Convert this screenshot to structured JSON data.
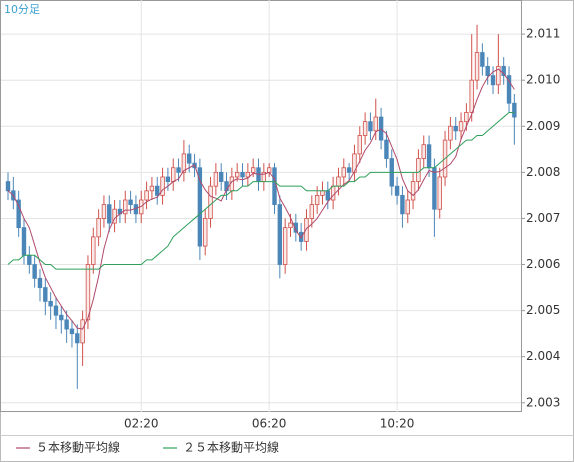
{
  "chart_data": {
    "type": "candlestick",
    "title": "10分足",
    "categories": [
      null,
      null,
      null,
      null,
      null,
      null,
      null,
      null,
      null,
      null,
      null,
      null,
      null,
      null,
      null,
      null,
      null,
      null,
      null,
      null,
      null,
      null,
      null,
      null,
      null,
      "02:20",
      null,
      null,
      null,
      null,
      null,
      null,
      null,
      null,
      null,
      null,
      null,
      null,
      null,
      null,
      null,
      null,
      null,
      null,
      null,
      null,
      null,
      null,
      null,
      "06:20",
      null,
      null,
      null,
      null,
      null,
      null,
      null,
      null,
      null,
      null,
      null,
      null,
      null,
      null,
      null,
      null,
      null,
      null,
      null,
      null,
      null,
      null,
      null,
      "10:20",
      null,
      null,
      null,
      null,
      null,
      null,
      null,
      null,
      null,
      null,
      null,
      null,
      null,
      null,
      null,
      null,
      null,
      null,
      null,
      null,
      null,
      null
    ],
    "candles": [
      [
        2.0078,
        2.008,
        2.0074,
        2.0076
      ],
      [
        2.0076,
        2.0079,
        2.0072,
        2.0074
      ],
      [
        2.0074,
        2.0076,
        2.0066,
        2.0068
      ],
      [
        2.0068,
        2.007,
        2.006,
        2.0062
      ],
      [
        2.0062,
        2.0064,
        2.0058,
        2.006
      ],
      [
        2.006,
        2.0062,
        2.0055,
        2.0057
      ],
      [
        2.0057,
        2.0059,
        2.0052,
        2.0055
      ],
      [
        2.0055,
        2.0057,
        2.0049,
        2.0052
      ],
      [
        2.0052,
        2.0054,
        2.0048,
        2.0051
      ],
      [
        2.0051,
        2.0053,
        2.0046,
        2.0049
      ],
      [
        2.0049,
        2.0051,
        2.0045,
        2.0048
      ],
      [
        2.0048,
        2.005,
        2.0043,
        2.0046
      ],
      [
        2.0046,
        2.0048,
        2.0042,
        2.0045
      ],
      [
        2.0045,
        2.0047,
        2.0033,
        2.0043
      ],
      [
        2.0043,
        2.005,
        2.0038,
        2.0048
      ],
      [
        2.0048,
        2.0062,
        2.0046,
        2.006
      ],
      [
        2.006,
        2.0068,
        2.0058,
        2.0066
      ],
      [
        2.0066,
        2.0072,
        2.0064,
        2.007
      ],
      [
        2.007,
        2.0075,
        2.0068,
        2.0073
      ],
      [
        2.0073,
        2.0075,
        2.0067,
        2.0069
      ],
      [
        2.0069,
        2.0074,
        2.0067,
        2.0072
      ],
      [
        2.0072,
        2.0074,
        2.0069,
        2.0071
      ],
      [
        2.0071,
        2.0076,
        2.0069,
        2.0074
      ],
      [
        2.0074,
        2.0076,
        2.0071,
        2.0073
      ],
      [
        2.0073,
        2.0075,
        2.0069,
        2.0071
      ],
      [
        2.0071,
        2.0076,
        2.0069,
        2.0074
      ],
      [
        2.0074,
        2.0078,
        2.0072,
        2.0076
      ],
      [
        2.0076,
        2.0079,
        2.0074,
        2.0077
      ],
      [
        2.0077,
        2.0079,
        2.0073,
        2.0075
      ],
      [
        2.0075,
        2.0081,
        2.0073,
        2.0079
      ],
      [
        2.0079,
        2.0081,
        2.0076,
        2.0078
      ],
      [
        2.0078,
        2.0083,
        2.0076,
        2.0081
      ],
      [
        2.0081,
        2.0083,
        2.0078,
        2.008
      ],
      [
        2.008,
        2.0087,
        2.0078,
        2.0084
      ],
      [
        2.0084,
        2.0086,
        2.008,
        2.0082
      ],
      [
        2.0082,
        2.0084,
        2.0079,
        2.0081
      ],
      [
        2.0081,
        2.0083,
        2.0061,
        2.0064
      ],
      [
        2.0064,
        2.0072,
        2.0062,
        2.007
      ],
      [
        2.007,
        2.0079,
        2.0068,
        2.0077
      ],
      [
        2.0077,
        2.0082,
        2.0075,
        2.008
      ],
      [
        2.008,
        2.0082,
        2.0076,
        2.0078
      ],
      [
        2.0078,
        2.008,
        2.0074,
        2.0076
      ],
      [
        2.0076,
        2.0081,
        2.0074,
        2.0079
      ],
      [
        2.0079,
        2.0082,
        2.0078,
        2.008
      ],
      [
        2.008,
        2.0082,
        2.0077,
        2.0079
      ],
      [
        2.0079,
        2.0082,
        2.0077,
        2.008
      ],
      [
        2.008,
        2.0083,
        2.0079,
        2.0081
      ],
      [
        2.0081,
        2.0083,
        2.0076,
        2.0078
      ],
      [
        2.0078,
        2.0082,
        2.0076,
        2.008
      ],
      [
        2.008,
        2.0082,
        2.0079,
        2.0081
      ],
      [
        2.0081,
        2.0082,
        2.0071,
        2.0073
      ],
      [
        2.0073,
        2.0075,
        2.0057,
        2.006
      ],
      [
        2.006,
        2.007,
        2.0058,
        2.0068
      ],
      [
        2.0068,
        2.0071,
        2.0066,
        2.0069
      ],
      [
        2.0069,
        2.0071,
        2.0065,
        2.0067
      ],
      [
        2.0067,
        2.0069,
        2.0063,
        2.0065
      ],
      [
        2.0065,
        2.0072,
        2.0063,
        2.007
      ],
      [
        2.007,
        2.0075,
        2.0068,
        2.0073
      ],
      [
        2.0073,
        2.0077,
        2.0071,
        2.0075
      ],
      [
        2.0075,
        2.0078,
        2.0073,
        2.0076
      ],
      [
        2.0076,
        2.0078,
        2.0072,
        2.0074
      ],
      [
        2.0074,
        2.0079,
        2.0072,
        2.0077
      ],
      [
        2.0077,
        2.0081,
        2.0075,
        2.0079
      ],
      [
        2.0079,
        2.0083,
        2.0077,
        2.0081
      ],
      [
        2.0081,
        2.0082,
        2.0078,
        2.008
      ],
      [
        2.008,
        2.0086,
        2.0078,
        2.0084
      ],
      [
        2.0084,
        2.009,
        2.0082,
        2.0088
      ],
      [
        2.0088,
        2.0093,
        2.0086,
        2.0091
      ],
      [
        2.0091,
        2.0093,
        2.0087,
        2.0089
      ],
      [
        2.0089,
        2.0096,
        2.0087,
        2.0092
      ],
      [
        2.0092,
        2.0094,
        2.0085,
        2.0087
      ],
      [
        2.0087,
        2.0089,
        2.0081,
        2.0083
      ],
      [
        2.0083,
        2.0085,
        2.0075,
        2.0077
      ],
      [
        2.0077,
        2.0079,
        2.0073,
        2.0075
      ],
      [
        2.0075,
        2.0077,
        2.0068,
        2.0071
      ],
      [
        2.0071,
        2.0076,
        2.0069,
        2.0074
      ],
      [
        2.0074,
        2.008,
        2.0072,
        2.0078
      ],
      [
        2.0078,
        2.0085,
        2.0076,
        2.0083
      ],
      [
        2.0083,
        2.0088,
        2.0081,
        2.0086
      ],
      [
        2.0086,
        2.0088,
        2.0079,
        2.0081
      ],
      [
        2.0081,
        2.0083,
        2.0066,
        2.0072
      ],
      [
        2.0072,
        2.0081,
        2.007,
        2.0079
      ],
      [
        2.0079,
        2.0089,
        2.0077,
        2.0087
      ],
      [
        2.0087,
        2.0092,
        2.0085,
        2.009
      ],
      [
        2.009,
        2.0092,
        2.0087,
        2.0089
      ],
      [
        2.0089,
        2.0093,
        2.0087,
        2.0091
      ],
      [
        2.0091,
        2.0095,
        2.0089,
        2.0093
      ],
      [
        2.0093,
        2.011,
        2.0091,
        2.01
      ],
      [
        2.01,
        2.0112,
        2.0098,
        2.0106
      ],
      [
        2.0106,
        2.0108,
        2.0101,
        2.0103
      ],
      [
        2.0103,
        2.0105,
        2.0099,
        2.0101
      ],
      [
        2.0101,
        2.0103,
        2.0097,
        2.0099
      ],
      [
        2.0099,
        2.011,
        2.0097,
        2.0103
      ],
      [
        2.0103,
        2.0105,
        2.0099,
        2.0101
      ],
      [
        2.0101,
        2.0103,
        2.0093,
        2.0095
      ],
      [
        2.0095,
        2.0097,
        2.0086,
        2.0092
      ]
    ],
    "up_color": "#d0504a",
    "down_color": "#4a86b8",
    "series": [
      {
        "name": "５本移動平均線",
        "color": "#b04a6a",
        "values": [
          2.0076,
          2.0075,
          2.00727,
          2.007,
          2.0068,
          2.00642,
          2.00604,
          2.00572,
          2.0055,
          2.00528,
          2.0051,
          2.00492,
          2.00478,
          2.00462,
          2.0046,
          2.00484,
          2.00524,
          2.00574,
          2.00634,
          2.00676,
          2.007,
          2.0071,
          2.00718,
          2.00718,
          2.00722,
          2.00726,
          2.00736,
          2.00742,
          2.00746,
          2.00762,
          2.0077,
          2.0078,
          2.00786,
          2.00804,
          2.0081,
          2.00816,
          2.00782,
          2.00762,
          2.00748,
          2.00744,
          2.00738,
          2.00762,
          2.0078,
          2.00786,
          2.00784,
          2.00788,
          2.00798,
          2.00796,
          2.00796,
          2.008,
          2.00786,
          2.00744,
          2.00724,
          2.00702,
          2.00674,
          2.00658,
          2.00678,
          2.00688,
          2.007,
          2.00718,
          2.00736,
          2.0075,
          2.00762,
          2.00774,
          2.00782,
          2.00802,
          2.00824,
          2.00848,
          2.00864,
          2.00888,
          2.00894,
          2.00884,
          2.00856,
          2.00828,
          2.00786,
          2.0076,
          2.0075,
          2.00762,
          2.00784,
          2.00804,
          2.008,
          2.00802,
          2.0081,
          2.00818,
          2.00834,
          2.00872,
          2.009,
          2.00926,
          2.00958,
          2.00986,
          2.01006,
          2.01018,
          2.01024,
          2.01014,
          2.00998,
          2.0098
        ]
      },
      {
        "name": "２５本移動平均線",
        "color": "#2ea05a",
        "values": [
          2.006,
          2.0061,
          2.0061,
          2.0062,
          2.0062,
          2.0062,
          2.0061,
          2.006,
          2.006,
          2.0059,
          2.0059,
          2.0059,
          2.0059,
          2.0059,
          2.0059,
          2.0059,
          2.0059,
          2.0059,
          2.006,
          2.006,
          2.006,
          2.006,
          2.006,
          2.006,
          2.006,
          2.006,
          2.0061,
          2.0061,
          2.0062,
          2.0063,
          2.0064,
          2.0066,
          2.0067,
          2.0068,
          2.0069,
          2.007,
          2.0071,
          2.0072,
          2.0073,
          2.0074,
          2.0075,
          2.0075,
          2.0076,
          2.0076,
          2.0077,
          2.0077,
          2.0078,
          2.0078,
          2.0078,
          2.0078,
          2.0078,
          2.0077,
          2.0077,
          2.0077,
          2.0077,
          2.0077,
          2.0076,
          2.0076,
          2.0076,
          2.0076,
          2.0076,
          2.0077,
          2.0077,
          2.0077,
          2.0078,
          2.0078,
          2.0079,
          2.0079,
          2.008,
          2.008,
          2.008,
          2.008,
          2.008,
          2.008,
          2.008,
          2.008,
          2.008,
          2.008,
          2.0081,
          2.0081,
          2.0081,
          2.0082,
          2.0083,
          2.0084,
          2.0085,
          2.0086,
          2.0087,
          2.0087,
          2.0088,
          2.0088,
          2.0089,
          2.009,
          2.0091,
          2.0092,
          2.0093,
          2.0093
        ]
      }
    ],
    "ylim": [
      2.0028,
      2.01174
    ],
    "yticks": [
      2.003,
      2.004,
      2.005,
      2.006,
      2.007,
      2.008,
      2.009,
      {
        "value": 2.01,
        "label": "2.010"
      },
      2.011
    ],
    "grid": true
  }
}
